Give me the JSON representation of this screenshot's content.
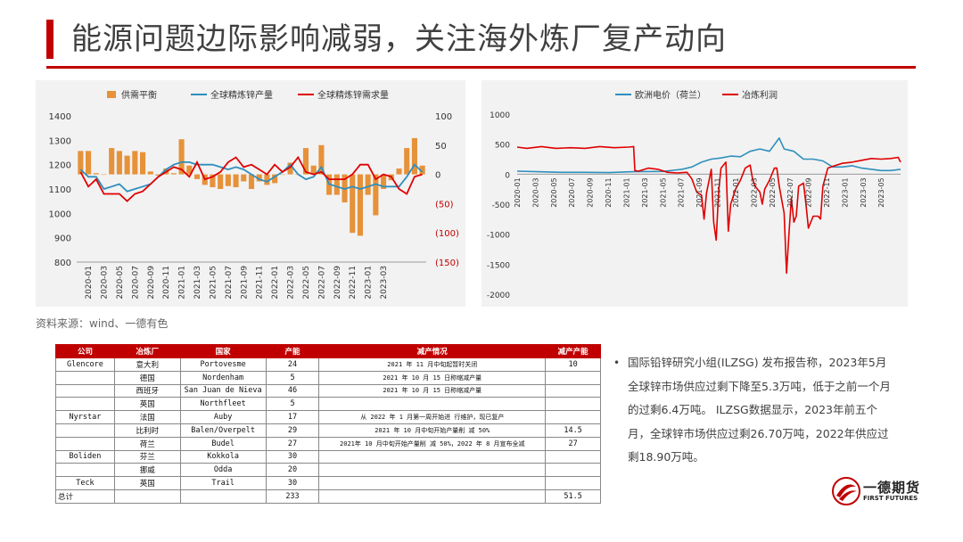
{
  "title": "能源问题边际影响减弱，关注海外炼厂复产动向",
  "source": "资料来源：wind、一德有色",
  "colors": {
    "accent": "#c00000",
    "bar": "#e6923a",
    "line_blue": "#2e8fbd",
    "line_red": "#e00000"
  },
  "chart_data": [
    {
      "type": "bar+line",
      "legend_position": "top",
      "series": [
        {
          "name": "供需平衡",
          "kind": "bar",
          "axis": "right",
          "values": [
            40,
            40,
            2,
            0,
            45,
            40,
            32,
            40,
            38,
            5,
            -2,
            10,
            2,
            60,
            15,
            -8,
            -18,
            -22,
            -25,
            -20,
            -22,
            -12,
            -25,
            -12,
            -18,
            -15,
            0,
            20,
            0,
            45,
            15,
            50,
            -35,
            -35,
            -48,
            -100,
            -105,
            -35,
            -70,
            -25,
            -10,
            10,
            45,
            62,
            15
          ]
        },
        {
          "name": "全球精炼锌产量",
          "kind": "line",
          "axis": "left",
          "values": [
            1180,
            1150,
            1150,
            1100,
            1110,
            1120,
            1090,
            1100,
            1110,
            1120,
            1150,
            1180,
            1200,
            1210,
            1210,
            1200,
            1200,
            1200,
            1190,
            1180,
            1190,
            1180,
            1160,
            1140,
            1130,
            1150,
            1170,
            1200,
            1160,
            1140,
            1150,
            1190,
            1120,
            1110,
            1100,
            1110,
            1100,
            1110,
            1120,
            1110,
            1110,
            1110,
            1150,
            1200,
            1170
          ]
        },
        {
          "name": "全球精炼锌需求量",
          "kind": "line",
          "axis": "left",
          "values": [
            1170,
            1110,
            1140,
            1080,
            1080,
            1080,
            1050,
            1080,
            1090,
            1120,
            1150,
            1170,
            1190,
            1180,
            1150,
            1210,
            1140,
            1150,
            1170,
            1210,
            1230,
            1190,
            1200,
            1180,
            1160,
            1200,
            1170,
            1190,
            1230,
            1170,
            1160,
            1170,
            1140,
            1140,
            1140,
            1160,
            1200,
            1200,
            1140,
            1160,
            1150,
            1100,
            1080,
            1150,
            1160
          ]
        }
      ],
      "x_tick_labels": [
        "2020-01",
        "2020-03",
        "2020-05",
        "2020-07",
        "2020-09",
        "2020-11",
        "2021-01",
        "2021-03",
        "2021-05",
        "2021-07",
        "2021-09",
        "2021-11",
        "2022-01",
        "2022-03",
        "2022-05",
        "2022-07",
        "2022-09",
        "2022-11",
        "2023-01",
        "2023-03"
      ],
      "y_left_ticks": [
        "1400",
        "1300",
        "1200",
        "1100",
        "1000",
        "900",
        "800"
      ],
      "y_right_ticks": [
        "100",
        "50",
        "0",
        "(50)",
        "(100)",
        "(150)"
      ],
      "ylim_left": [
        800,
        1400
      ],
      "ylim_right": [
        -150,
        100
      ]
    },
    {
      "type": "line",
      "legend_position": "top",
      "series": [
        {
          "name": "欧洲电价（荷兰）",
          "values": [
            [
              0,
              50
            ],
            [
              8,
              40
            ],
            [
              18,
              30
            ],
            [
              28,
              30
            ],
            [
              38,
              25
            ],
            [
              48,
              40
            ],
            [
              60,
              45
            ],
            [
              68,
              80
            ],
            [
              72,
              120
            ],
            [
              76,
              200
            ],
            [
              80,
              250
            ],
            [
              84,
              270
            ],
            [
              88,
              300
            ],
            [
              92,
              290
            ],
            [
              96,
              380
            ],
            [
              100,
              420
            ],
            [
              104,
              380
            ],
            [
              108,
              600
            ],
            [
              110,
              420
            ],
            [
              114,
              380
            ],
            [
              118,
              250
            ],
            [
              122,
              250
            ],
            [
              126,
              220
            ],
            [
              130,
              120
            ],
            [
              134,
              120
            ],
            [
              138,
              140
            ],
            [
              142,
              100
            ],
            [
              146,
              80
            ],
            [
              150,
              60
            ],
            [
              154,
              60
            ],
            [
              158,
              80
            ]
          ]
        },
        {
          "name": "冶炼利润",
          "values": [
            [
              0,
              450
            ],
            [
              4,
              430
            ],
            [
              10,
              460
            ],
            [
              16,
              430
            ],
            [
              22,
              440
            ],
            [
              28,
              430
            ],
            [
              34,
              460
            ],
            [
              40,
              440
            ],
            [
              46,
              450
            ],
            [
              48,
              460
            ],
            [
              48.5,
              60
            ],
            [
              50,
              50
            ],
            [
              54,
              100
            ],
            [
              58,
              80
            ],
            [
              62,
              30
            ],
            [
              66,
              20
            ],
            [
              70,
              30
            ],
            [
              72,
              -80
            ],
            [
              74,
              -300
            ],
            [
              76,
              -350
            ],
            [
              77,
              -750
            ],
            [
              78,
              -320
            ],
            [
              80,
              80
            ],
            [
              81,
              -800
            ],
            [
              82,
              -1100
            ],
            [
              83,
              -300
            ],
            [
              84,
              100
            ],
            [
              86,
              200
            ],
            [
              87,
              -950
            ],
            [
              88,
              -500
            ],
            [
              90,
              -250
            ],
            [
              92,
              -100
            ],
            [
              94,
              100
            ],
            [
              96,
              150
            ],
            [
              97,
              -80
            ],
            [
              98,
              -200
            ],
            [
              100,
              -300
            ],
            [
              101,
              -500
            ],
            [
              102,
              -250
            ],
            [
              104,
              -100
            ],
            [
              106,
              100
            ],
            [
              107,
              100
            ],
            [
              108,
              -200
            ],
            [
              110,
              -650
            ],
            [
              111,
              -1650
            ],
            [
              112,
              -1000
            ],
            [
              113,
              -400
            ],
            [
              114,
              -800
            ],
            [
              115,
              -700
            ],
            [
              116,
              -200
            ],
            [
              118,
              -150
            ],
            [
              119,
              -500
            ],
            [
              120,
              -900
            ],
            [
              122,
              -700
            ],
            [
              124,
              -700
            ],
            [
              125,
              -750
            ],
            [
              126,
              -200
            ],
            [
              128,
              100
            ],
            [
              130,
              130
            ],
            [
              134,
              180
            ],
            [
              138,
              200
            ],
            [
              142,
              230
            ],
            [
              146,
              260
            ],
            [
              150,
              250
            ],
            [
              154,
              260
            ],
            [
              157,
              280
            ],
            [
              158,
              200
            ]
          ]
        }
      ],
      "x_tick_labels": [
        "2020-01",
        "2020-03",
        "2020-05",
        "2020-07",
        "2020-09",
        "2020-11",
        "2021-01",
        "2021-03",
        "2021-05",
        "2021-07",
        "2021-09",
        "2021-11",
        "2022-01",
        "2022-03",
        "2022-05",
        "2022-07",
        "2022-09",
        "2022-11",
        "2023-01",
        "2023-03",
        "2023-05"
      ],
      "y_ticks": [
        "1000",
        "500",
        "0",
        "-500",
        "-1000",
        "-1500",
        "-2000"
      ],
      "ylim": [
        -2000,
        1000
      ]
    }
  ],
  "table": {
    "headers": [
      "公司",
      "冶炼厂",
      "国家",
      "产能",
      "减产情况",
      "减产产能"
    ],
    "rows": [
      [
        "Glencore",
        "意大利",
        "Portovesme",
        "24",
        "2021 年 11 月中旬起暂时关闭",
        "10"
      ],
      [
        "",
        "德国",
        "Nordenham",
        "5",
        "2021 年 10 月 15 日称缩减产量",
        ""
      ],
      [
        "",
        "西班牙",
        "San Juan de Nieva",
        "46",
        "2021 年 10 月 15 日称缩减产量",
        ""
      ],
      [
        "",
        "英国",
        "Northfleet",
        "5",
        "",
        ""
      ],
      [
        "Nyrstar",
        "法国",
        "Auby",
        "17",
        "从 2022 年 1 月第一周开始进 行维护，现已复产",
        ""
      ],
      [
        "",
        "比利时",
        "Balen/Overpelt",
        "29",
        "2021 年 10 月中旬开始产量削 减 50%",
        "14.5"
      ],
      [
        "",
        "荷兰",
        "Budel",
        "27",
        "2021年 10 月中旬开始产量削 减 50%，2022 年 8 月宣布全减",
        "27"
      ],
      [
        "Boliden",
        "芬兰",
        "Kokkola",
        "30",
        "",
        ""
      ],
      [
        "",
        "挪威",
        "Odda",
        "20",
        "",
        ""
      ],
      [
        "Teck",
        "英国",
        "Trail",
        "30",
        "",
        ""
      ],
      [
        "总计",
        "",
        "",
        "233",
        "",
        "51.5"
      ]
    ]
  },
  "bullet": "国际铅锌研究小组(ILZSG) 发布报告称，2023年5月全球锌市场供应过剩下降至5.3万吨，低于之前一个月的过剩6.4万吨。 ILZSG数据显示，2023年前五个月，全球锌市场供应过剩26.70万吨，2022年供应过剩18.90万吨。",
  "logo": {
    "name": "一德期货",
    "sub": "FIRST FUTURES"
  }
}
